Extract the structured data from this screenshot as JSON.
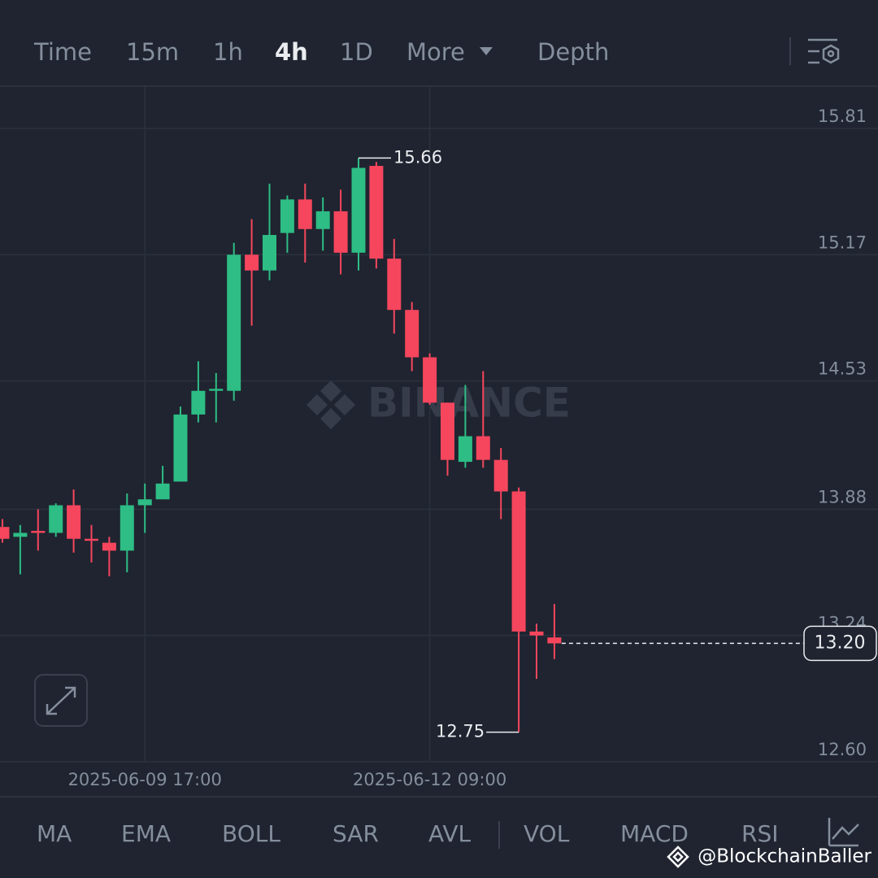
{
  "tabs": [
    "Time",
    "15m",
    "1h",
    "4h",
    "1D",
    "More",
    "Depth"
  ],
  "active_tab": 3,
  "chart_data": {
    "type": "candlestick",
    "watermark": "BINANCE",
    "categories": [
      null,
      null,
      null,
      null,
      null,
      null,
      null,
      null,
      "2025-06-09 17:00",
      null,
      null,
      null,
      null,
      null,
      null,
      null,
      null,
      null,
      null,
      null,
      null,
      null,
      null,
      null,
      "2025-06-12 09:00",
      null,
      null,
      null,
      null,
      null,
      null,
      null
    ],
    "open": [
      13.79,
      13.74,
      13.77,
      13.76,
      13.9,
      13.73,
      13.71,
      13.67,
      13.9,
      13.93,
      14.02,
      14.36,
      14.48,
      14.48,
      15.17,
      15.09,
      15.28,
      15.45,
      15.3,
      15.39,
      15.18,
      15.62,
      15.15,
      14.89,
      14.65,
      14.42,
      14.12,
      14.25,
      14.13,
      13.97,
      13.26,
      13.23
    ],
    "high": [
      13.83,
      13.8,
      13.88,
      13.91,
      13.98,
      13.8,
      13.74,
      13.96,
      14.01,
      14.1,
      14.4,
      14.63,
      14.57,
      15.23,
      15.35,
      15.53,
      15.47,
      15.53,
      15.46,
      15.5,
      15.66,
      15.64,
      15.25,
      14.93,
      14.67,
      14.42,
      14.51,
      14.58,
      14.19,
      13.99,
      13.3,
      13.4
    ],
    "low": [
      13.71,
      13.55,
      13.67,
      13.74,
      13.66,
      13.61,
      13.54,
      13.56,
      13.76,
      13.93,
      14.02,
      14.32,
      14.32,
      14.43,
      14.81,
      15.04,
      15.18,
      15.13,
      15.19,
      15.07,
      15.09,
      15.1,
      14.77,
      14.58,
      14.41,
      14.05,
      14.09,
      14.09,
      13.83,
      12.75,
      13.02,
      13.12
    ],
    "close": [
      13.73,
      13.76,
      13.76,
      13.9,
      13.73,
      13.72,
      13.67,
      13.9,
      13.93,
      14.01,
      14.36,
      14.48,
      14.49,
      15.17,
      15.09,
      15.27,
      15.45,
      15.3,
      15.39,
      15.18,
      15.61,
      15.15,
      14.89,
      14.65,
      14.42,
      14.13,
      14.25,
      14.13,
      13.97,
      13.26,
      13.24,
      13.2
    ],
    "up_color": "#2ebd85",
    "down_color": "#f6465d",
    "ylim": [
      12.6,
      16.02
    ],
    "yticks": [
      15.81,
      15.17,
      14.53,
      13.88,
      13.24,
      {
        "value": 12.6,
        "label": "12.60"
      }
    ],
    "grid": true,
    "last_price": {
      "value": 13.2,
      "label": "13.20"
    }
  },
  "indicators": [
    "MA",
    "EMA",
    "BOLL",
    "SAR",
    "AVL",
    "VOL",
    "MACD",
    "RSI"
  ],
  "credit": "@BlockchainBaller"
}
